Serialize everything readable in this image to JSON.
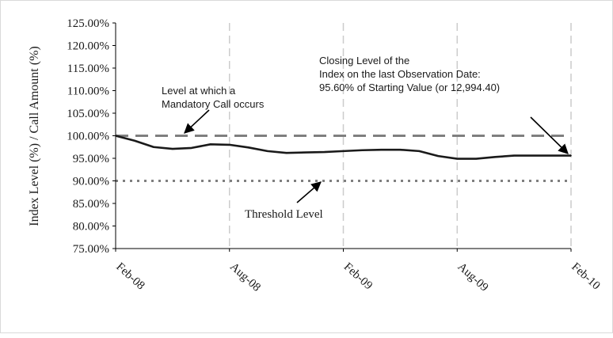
{
  "chart_data": {
    "type": "line",
    "ylabel": "Index Level (%) / Call Amount (%)",
    "xlabel": "",
    "ylim": [
      75,
      125
    ],
    "y_ticks": [
      75,
      80,
      85,
      90,
      95,
      100,
      105,
      110,
      115,
      120,
      125
    ],
    "y_tick_labels": [
      "75.00%",
      "80.00%",
      "85.00%",
      "90.00%",
      "95.00%",
      "100.00%",
      "105.00%",
      "110.00%",
      "115.00%",
      "120.00%",
      "125.00%"
    ],
    "x_categories": [
      "Feb-08",
      "Aug-08",
      "Feb-09",
      "Aug-09",
      "Feb-10"
    ],
    "grid": "vertical dashed at x ticks",
    "series": [
      {
        "values": [
          {
            "x": "2008-02",
            "y": 100.0
          },
          {
            "x": "2008-03",
            "y": 98.9
          },
          {
            "x": "2008-04",
            "y": 97.5
          },
          {
            "x": "2008-05",
            "y": 97.1
          },
          {
            "x": "2008-06",
            "y": 97.3
          },
          {
            "x": "2008-07",
            "y": 98.1
          },
          {
            "x": "2008-08",
            "y": 98.0
          },
          {
            "x": "2008-09",
            "y": 97.4
          },
          {
            "x": "2008-10",
            "y": 96.6
          },
          {
            "x": "2008-11",
            "y": 96.2
          },
          {
            "x": "2008-12",
            "y": 96.3
          },
          {
            "x": "2009-01",
            "y": 96.4
          },
          {
            "x": "2009-02",
            "y": 96.6
          },
          {
            "x": "2009-03",
            "y": 96.8
          },
          {
            "x": "2009-04",
            "y": 96.9
          },
          {
            "x": "2009-05",
            "y": 96.9
          },
          {
            "x": "2009-06",
            "y": 96.6
          },
          {
            "x": "2009-07",
            "y": 95.5
          },
          {
            "x": "2009-08",
            "y": 94.9
          },
          {
            "x": "2009-09",
            "y": 94.9
          },
          {
            "x": "2009-10",
            "y": 95.3
          },
          {
            "x": "2009-11",
            "y": 95.6
          },
          {
            "x": "2009-12",
            "y": 95.6
          },
          {
            "x": "2010-01",
            "y": 95.6
          },
          {
            "x": "2010-02",
            "y": 95.6
          }
        ],
        "color": "#1a1a1a"
      }
    ],
    "reference_lines": [
      {
        "y": 100.0,
        "style": "long-dash",
        "color": "#7f7f7f"
      },
      {
        "y": 90.0,
        "style": "dotted",
        "color": "#7f7f7f"
      }
    ],
    "annotations": {
      "mandatory_call": [
        "Level at which a",
        "Mandatory Call occurs"
      ],
      "closing_level": [
        "Closing Level of the",
        "Index on the last Observation Date:",
        "95.60% of Starting Value (or 12,994.40)"
      ],
      "threshold": "Threshold Level"
    }
  }
}
